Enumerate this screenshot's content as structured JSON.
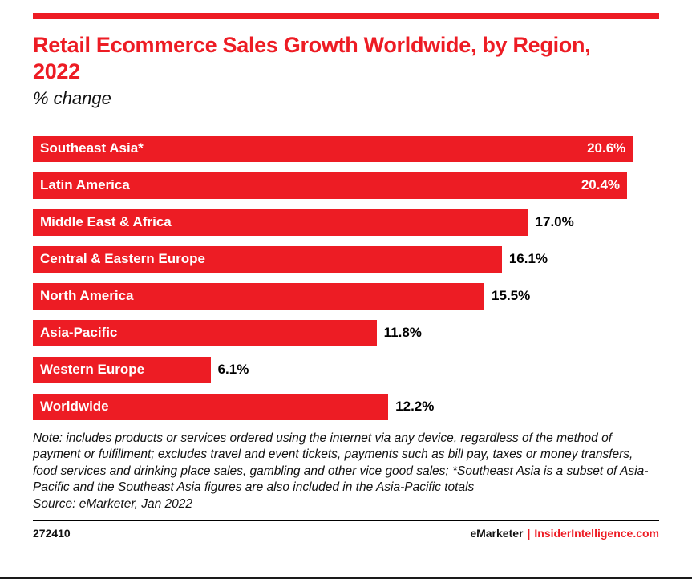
{
  "header": {
    "title": "Retail Ecommerce Sales Growth Worldwide, by Region, 2022",
    "subtitle": "% change"
  },
  "chart_data": {
    "type": "bar",
    "orientation": "horizontal",
    "categories": [
      "Southeast Asia*",
      "Latin America",
      "Middle East & Africa",
      "Central & Eastern Europe",
      "North America",
      "Asia-Pacific",
      "Western Europe",
      "Worldwide"
    ],
    "values": [
      20.6,
      20.4,
      17.0,
      16.1,
      15.5,
      11.8,
      6.1,
      12.2
    ],
    "value_labels": [
      "20.6%",
      "20.4%",
      "17.0%",
      "16.1%",
      "15.5%",
      "11.8%",
      "6.1%",
      "12.2%"
    ],
    "title": "Retail Ecommerce Sales Growth Worldwide, by Region, 2022",
    "subtitle_label": "% change",
    "xlim": [
      0,
      21.5
    ],
    "bar_color": "#ED1C24",
    "grid": false,
    "legend": "none"
  },
  "note": {
    "text": "Note: includes products or services ordered using the internet via any device, regardless of the method of payment or fulfillment; excludes travel and event tickets, payments such as bill pay, taxes or money transfers, food services and drinking place sales, gambling and other vice good sales; *Southeast Asia is a subset of Asia-Pacific and the Southeast Asia figures are also included in the Asia-Pacific totals",
    "source": "Source: eMarketer, Jan 2022"
  },
  "footer": {
    "chart_id": "272410",
    "brand_left": "eMarketer",
    "separator": "|",
    "brand_right": "InsiderIntelligence.com"
  },
  "colors": {
    "accent_red": "#ED1C24",
    "text_black": "#111111"
  }
}
